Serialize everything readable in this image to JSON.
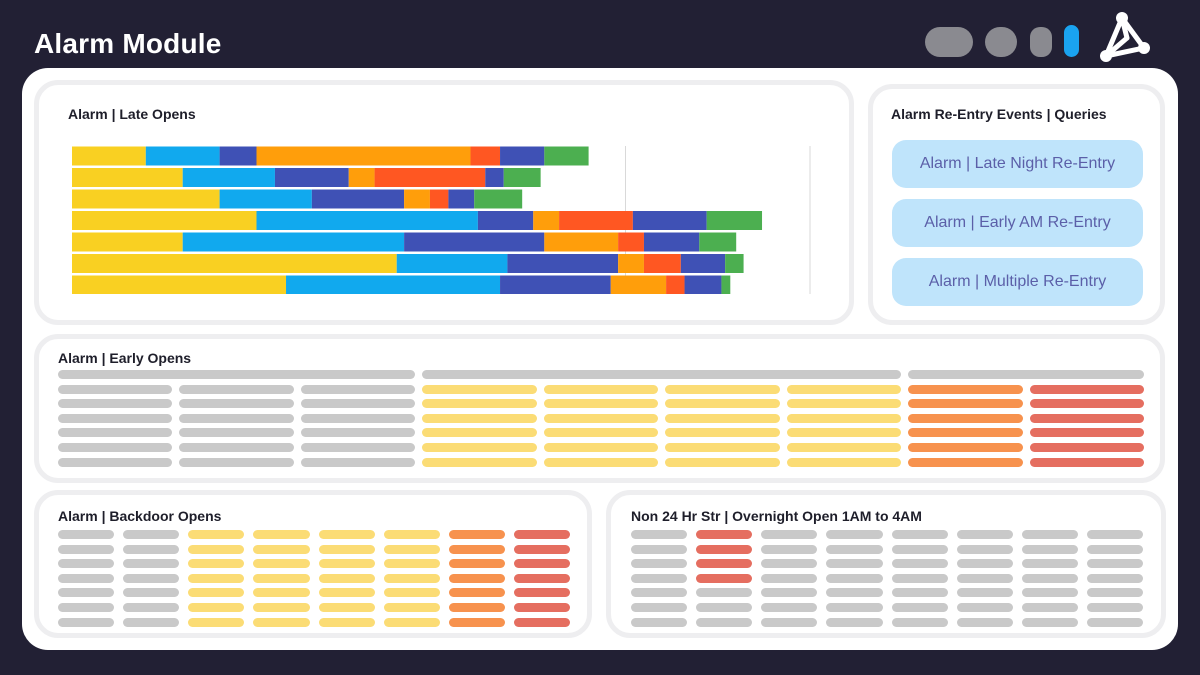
{
  "header": {
    "title": "Alarm Module",
    "window_controls": [
      "pill-control-icon",
      "circle-control-icon",
      "small-pill-control-icon",
      "active-toggle-icon"
    ],
    "logo_icon": "triangle-network-logo-icon",
    "colors": {
      "background": "#222034",
      "accent": "#1aa3f0"
    }
  },
  "late_opens": {
    "title": "Alarm | Late Opens",
    "chart_data": {
      "type": "bar",
      "orientation": "horizontal",
      "stacked": true,
      "row_count": 7,
      "segment_colors": [
        "#f9d022",
        "#11a9ee",
        "#3f51b5",
        "#ff9e0b",
        "#ff5722",
        "#4caf50"
      ],
      "rows": [
        [
          [
            "#f9d022",
            10
          ],
          [
            "#11a9ee",
            10
          ],
          [
            "#3f51b5",
            5
          ],
          [
            "#ff9e0b",
            29
          ],
          [
            "#ff5722",
            4
          ],
          [
            "#3f51b5",
            6
          ],
          [
            "#4caf50",
            6
          ]
        ],
        [
          [
            "#f9d022",
            15
          ],
          [
            "#11a9ee",
            12.5
          ],
          [
            "#3f51b5",
            10
          ],
          [
            "#ff9e0b",
            3.5
          ],
          [
            "#ff5722",
            15
          ],
          [
            "#3f51b5",
            2.5
          ],
          [
            "#4caf50",
            5
          ]
        ],
        [
          [
            "#f9d022",
            20
          ],
          [
            "#11a9ee",
            12.5
          ],
          [
            "#3f51b5",
            12.5
          ],
          [
            "#ff9e0b",
            3.5
          ],
          [
            "#ff5722",
            2.5
          ],
          [
            "#3f51b5",
            3.5
          ],
          [
            "#4caf50",
            6.5
          ]
        ],
        [
          [
            "#f9d022",
            25
          ],
          [
            "#11a9ee",
            30
          ],
          [
            "#3f51b5",
            7.5
          ],
          [
            "#ff9e0b",
            3.5
          ],
          [
            "#ff5722",
            10
          ],
          [
            "#3f51b5",
            10
          ],
          [
            "#4caf50",
            7.5
          ]
        ],
        [
          [
            "#f9d022",
            15
          ],
          [
            "#11a9ee",
            30
          ],
          [
            "#3f51b5",
            19
          ],
          [
            "#ff9e0b",
            10
          ],
          [
            "#ff5722",
            3.5
          ],
          [
            "#3f51b5",
            7.5
          ],
          [
            "#4caf50",
            5
          ]
        ],
        [
          [
            "#f9d022",
            44
          ],
          [
            "#11a9ee",
            15
          ],
          [
            "#3f51b5",
            15
          ],
          [
            "#ff9e0b",
            3.5
          ],
          [
            "#ff5722",
            5
          ],
          [
            "#3f51b5",
            6
          ],
          [
            "#4caf50",
            2.5
          ]
        ],
        [
          [
            "#f9d022",
            29
          ],
          [
            "#11a9ee",
            29
          ],
          [
            "#3f51b5",
            15
          ],
          [
            "#ff9e0b",
            7.5
          ],
          [
            "#ff5722",
            2.5
          ],
          [
            "#3f51b5",
            5
          ],
          [
            "#4caf50",
            1.2
          ]
        ]
      ],
      "xlim": [
        0,
        100
      ],
      "reference_lines": [
        75,
        100
      ]
    }
  },
  "reentry": {
    "title": "Alarm Re-Entry Events | Queries",
    "queries": [
      {
        "label": "Alarm | Late Night Re-Entry"
      },
      {
        "label": "Alarm | Early AM Re-Entry"
      },
      {
        "label": "Alarm | Multiple Re-Entry"
      }
    ],
    "colors": {
      "button_bg": "#bfe4fb",
      "button_text": "#5b5fa8"
    }
  },
  "early_opens": {
    "title": "Alarm | Early Opens",
    "column_colors": [
      "gray",
      "gray",
      "gray",
      "yellow",
      "yellow",
      "yellow",
      "yellow",
      "orange",
      "red"
    ],
    "header_groups": [
      3,
      4,
      2
    ],
    "rows": 6
  },
  "backdoor_opens": {
    "title": "Alarm | Backdoor Opens",
    "column_colors": [
      "gray",
      "gray",
      "yellow",
      "yellow",
      "yellow",
      "yellow",
      "orange",
      "red"
    ],
    "rows": 7
  },
  "overnight": {
    "title": "Non 24 Hr Str | Overnight Open 1AM to 4AM",
    "column_colors": [
      "gray",
      "red",
      "gray",
      "gray",
      "gray",
      "gray",
      "gray",
      "gray"
    ],
    "rows": 7,
    "highlighted_rows": 4
  },
  "palette": {
    "gray": "#c9c9c9",
    "yellow": "#fbdc75",
    "orange": "#f7924e",
    "red": "#e56e60"
  }
}
